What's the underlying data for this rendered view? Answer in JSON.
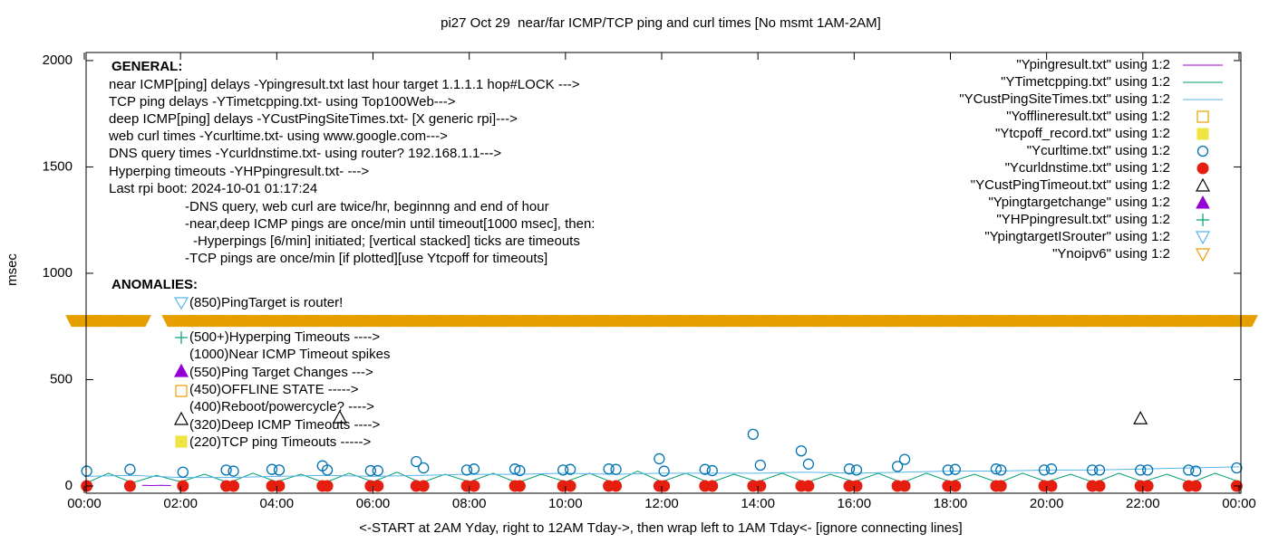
{
  "chart_data": {
    "type": "line",
    "title": "pi27 Oct 29  near/far ICMP/TCP ping and curl times [No msmt 1AM-2AM]",
    "xlabel": "<-START at 2AM Yday, right to 12AM Tday->, then wrap left to 1AM Tday<- [ignore connecting lines]",
    "ylabel": "msec",
    "xlim": [
      0,
      24
    ],
    "xticks": [
      {
        "value": 0,
        "label": "00:00"
      },
      {
        "value": 2,
        "label": "02:00"
      },
      {
        "value": 4,
        "label": "04:00"
      },
      {
        "value": 6,
        "label": "06:00"
      },
      {
        "value": 8,
        "label": "08:00"
      },
      {
        "value": 10,
        "label": "10:00"
      },
      {
        "value": 12,
        "label": "12:00"
      },
      {
        "value": 14,
        "label": "14:00"
      },
      {
        "value": 16,
        "label": "16:00"
      },
      {
        "value": 18,
        "label": "18:00"
      },
      {
        "value": 20,
        "label": "20:00"
      },
      {
        "value": 22,
        "label": "22:00"
      },
      {
        "value": 24,
        "label": "00:00"
      }
    ],
    "ylim": [
      -34,
      2038
    ],
    "yticks": [
      0,
      500,
      1000,
      1500,
      2000
    ],
    "grid": false,
    "legend": "top-right",
    "notes": [
      "GENERAL:",
      "near ICMP[ping] delays -Ypingresult.txt last hour target 1.1.1.1 hop#LOCK --->",
      "TCP ping delays -YTimetcpping.txt- using Top100Web--->",
      "deep ICMP[ping] delays -YCustPingSiteTimes.txt- [X generic rpi]--->",
      "web curl times -Ycurltime.txt- using www.google.com--->",
      "DNS query times -Ycurldnstime.txt- using router? 192.168.1.1--->",
      "Hyperping timeouts -YHPpingresult.txt- --->",
      "Last rpi boot: 2024-10-01 01:17:24",
      "-DNS query, web curl are twice/hr, beginnng and end of hour",
      "-near,deep ICMP pings are once/min until timeout[1000 msec], then:",
      "-Hyperpings [6/min] initiated; [vertical stacked] ticks are timeouts",
      "-TCP pings are once/min [if plotted][use Ytcpoff for timeouts]",
      "ANOMALIES:",
      "(850)PingTarget is router!",
      "(500+)Hyperping Timeouts ---->",
      "(1000)Near ICMP Timeout spikes",
      "(550)Ping Target Changes --->",
      "(450)OFFLINE STATE ----->",
      "(400)Reboot/powercycle? ---->",
      "(320)Deep ICMP Timeouts ---->",
      "(220)TCP ping Timeouts ----->"
    ],
    "series": [
      {
        "name": "\"Ypingresult.txt\" using 1:2",
        "color": "#9400d3",
        "marker": "line",
        "x": [
          1.2,
          1.4,
          1.6,
          1.8
        ],
        "values": [
          3,
          2,
          3,
          2
        ]
      },
      {
        "name": "\"YTimetcpping.txt\" using 1:2",
        "color": "#009e73",
        "marker": "line",
        "x": [
          0,
          0.5,
          1,
          1.5,
          2,
          2.5,
          3,
          3.5,
          4,
          4.5,
          5,
          5.5,
          6,
          6.5,
          7,
          7.5,
          8,
          8.5,
          9,
          9.5,
          10,
          10.5,
          11,
          11.5,
          12,
          12.5,
          13,
          13.5,
          14,
          14.5,
          15,
          15.5,
          16,
          16.5,
          17,
          17.5,
          18,
          18.5,
          19,
          19.5,
          20,
          20.5,
          21,
          21.5,
          22,
          22.5,
          23,
          23.5,
          24
        ],
        "values": [
          10,
          60,
          15,
          50,
          20,
          55,
          15,
          60,
          20,
          55,
          15,
          60,
          20,
          65,
          15,
          55,
          20,
          60,
          15,
          55,
          20,
          60,
          15,
          70,
          20,
          60,
          15,
          55,
          20,
          60,
          15,
          55,
          20,
          60,
          15,
          60,
          20,
          55,
          15,
          60,
          20,
          55,
          15,
          60,
          20,
          55,
          15,
          60,
          20
        ]
      },
      {
        "name": "\"YCustPingSiteTimes.txt\" using 1:2",
        "color": "#56b4e9",
        "marker": "line",
        "x": [
          0,
          1,
          2,
          3,
          4,
          5,
          6,
          7,
          8,
          9,
          10,
          11,
          12,
          13,
          14,
          15,
          16,
          17,
          18,
          19,
          20,
          21,
          22,
          23,
          24
        ],
        "values": [
          45,
          50,
          40,
          40,
          45,
          50,
          45,
          50,
          55,
          55,
          60,
          55,
          60,
          60,
          60,
          65,
          60,
          65,
          70,
          70,
          75,
          75,
          80,
          85,
          90
        ]
      },
      {
        "name": "\"Yofflineresult.txt\" using 1:2",
        "color": "#e69f00",
        "marker": "square-open",
        "x": [],
        "values": []
      },
      {
        "name": "\"Ytcpoff_record.txt\" using 1:2",
        "color": "#f0e442",
        "marker": "square-filled",
        "x": [],
        "values": []
      },
      {
        "name": "\"Ycurltime.txt\" using 1:2",
        "color": "#0072b2",
        "marker": "circle-open",
        "x": [
          0.05,
          0.95,
          2.05,
          2.95,
          3.1,
          3.9,
          4.05,
          4.95,
          5.05,
          5.95,
          6.1,
          6.9,
          7.05,
          7.95,
          8.1,
          8.95,
          9.05,
          9.95,
          10.1,
          10.9,
          11.05,
          11.95,
          12.05,
          12.9,
          13.05,
          13.9,
          14.05,
          14.9,
          15.05,
          15.9,
          16.05,
          16.9,
          17.05,
          17.95,
          18.1,
          18.95,
          19.05,
          19.95,
          20.1,
          20.95,
          21.1,
          21.95,
          22.1,
          22.95,
          23.1,
          23.95
        ],
        "values": [
          70,
          78,
          65,
          75,
          70,
          78,
          75,
          95,
          75,
          72,
          72,
          115,
          85,
          75,
          80,
          80,
          72,
          75,
          78,
          80,
          78,
          128,
          70,
          78,
          72,
          243,
          98,
          165,
          103,
          80,
          75,
          92,
          125,
          75,
          78,
          80,
          75,
          75,
          80,
          75,
          75,
          75,
          75,
          75,
          70,
          85
        ]
      },
      {
        "name": "\"Ycurldnstime.txt\" using 1:2",
        "color": "#e51e10",
        "marker": "circle-filled",
        "x": [
          0.05,
          0.95,
          2.05,
          2.95,
          3.1,
          3.9,
          4.05,
          4.95,
          5.05,
          5.95,
          6.1,
          6.9,
          7.05,
          7.95,
          8.1,
          8.95,
          9.05,
          9.95,
          10.1,
          10.9,
          11.05,
          11.95,
          12.05,
          12.9,
          13.05,
          13.9,
          14.05,
          14.9,
          15.05,
          15.9,
          16.05,
          16.9,
          17.05,
          17.95,
          18.1,
          18.95,
          19.05,
          19.95,
          20.1,
          20.95,
          21.1,
          21.95,
          22.1,
          22.95,
          23.1,
          23.95
        ],
        "values": [
          0,
          0,
          0,
          0,
          0,
          0,
          0,
          0,
          0,
          0,
          0,
          0,
          0,
          0,
          0,
          0,
          0,
          0,
          0,
          0,
          0,
          0,
          0,
          0,
          0,
          0,
          0,
          0,
          0,
          0,
          0,
          0,
          0,
          0,
          0,
          0,
          0,
          0,
          0,
          0,
          0,
          0,
          0,
          0,
          0,
          0
        ]
      },
      {
        "name": "\"YCustPingTimeout.txt\" using 1:2",
        "color": "#000000",
        "marker": "triangle-open",
        "x": [
          5.31,
          21.95
        ],
        "values": [
          323,
          318
        ]
      },
      {
        "name": "\"Ypingtargetchange\" using 1:2",
        "color": "#9400d3",
        "marker": "triangle-filled",
        "x": [],
        "values": []
      },
      {
        "name": "\"YHPpingresult.txt\" using 1:2",
        "color": "#009e73",
        "marker": "plus",
        "x": [],
        "values": []
      },
      {
        "name": "\"YpingtargetISrouter\" using 1:2",
        "color": "#56b4e9",
        "marker": "triangle-down-open",
        "x": [],
        "values": []
      },
      {
        "name": "\"Ynoipv6\" using 1:2",
        "color": "#e69f00",
        "marker": "triangle-down-band",
        "x": [
          0,
          0.5,
          1,
          2,
          2.5,
          3,
          3.5,
          4,
          4.5,
          5,
          5.5,
          6,
          6.5,
          7,
          7.5,
          8,
          8.5,
          9,
          9.5,
          10,
          10.5,
          11,
          11.5,
          12,
          12.5,
          13,
          13.5,
          14,
          14.5,
          15,
          15.5,
          16,
          16.5,
          17,
          17.5,
          18,
          18.5,
          19,
          19.5,
          20,
          20.5,
          21,
          21.5,
          22,
          22.5,
          23,
          23.5,
          24
        ],
        "values": [
          780,
          780,
          780,
          780,
          780,
          780,
          780,
          780,
          780,
          780,
          780,
          780,
          780,
          780,
          780,
          780,
          780,
          780,
          780,
          780,
          780,
          780,
          780,
          780,
          780,
          780,
          780,
          780,
          780,
          780,
          780,
          780,
          780,
          780,
          780,
          780,
          780,
          780,
          780,
          780,
          780,
          780,
          780,
          780,
          780,
          780,
          780,
          780
        ]
      }
    ]
  }
}
